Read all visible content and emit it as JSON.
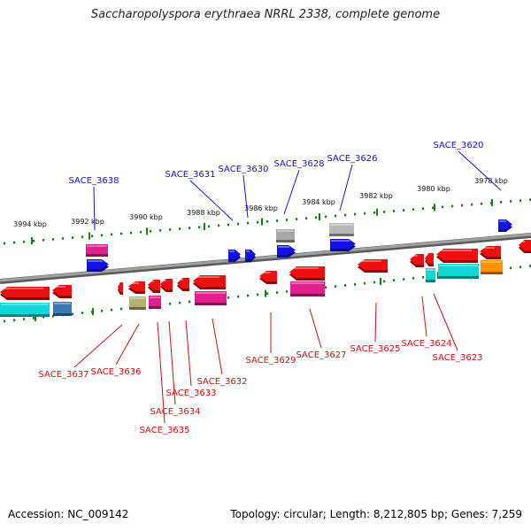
{
  "title": "Saccharopolyspora erythraea NRRL 2338, complete genome",
  "footer": {
    "accession": "Accession: NC_009142",
    "summary": "Topology: circular; Length: 8,212,805 bp; Genes: 7,259"
  },
  "colors": {
    "forward_label": "#1515c8",
    "reverse_label": "#d01010",
    "tick": "#138013",
    "backbone": "#808080"
  },
  "scale_ticks": [
    "3994 kbp",
    "3992 kbp",
    "3990 kbp",
    "3988 kbp",
    "3986 kbp",
    "3984 kbp",
    "3982 kbp",
    "3980 kbp",
    "3978 kbp"
  ],
  "forward_genes": [
    "SACE_3638",
    "SACE_3631",
    "SACE_3630",
    "SACE_3628",
    "SACE_3626",
    "SACE_3620"
  ],
  "reverse_genes": [
    "SACE_3637",
    "SACE_3636",
    "SACE_3635",
    "SACE_3634",
    "SACE_3633",
    "SACE_3632",
    "SACE_3629",
    "SACE_3627",
    "SACE_3625",
    "SACE_3624",
    "SACE_3623"
  ]
}
